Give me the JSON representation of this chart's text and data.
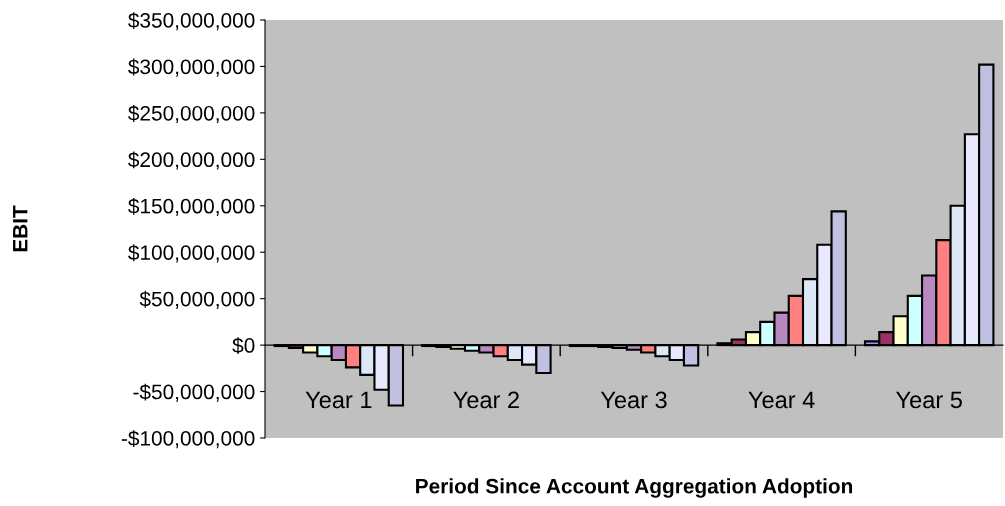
{
  "chart_data": {
    "type": "bar",
    "xlabel": "Period Since Account Aggregation Adoption",
    "ylabel": "EBIT",
    "categories": [
      "Year 1",
      "Year 2",
      "Year 3",
      "Year 4",
      "Year 5"
    ],
    "series": [
      {
        "color": "#9999ff",
        "values": [
          -1000000,
          -1000000,
          -1000000,
          2000000,
          4000000
        ]
      },
      {
        "color": "#993366",
        "values": [
          -3000000,
          -2000000,
          -1000000,
          6000000,
          14000000
        ]
      },
      {
        "color": "#ffffcc",
        "values": [
          -8000000,
          -4000000,
          -2000000,
          14000000,
          31000000
        ]
      },
      {
        "color": "#ccffff",
        "values": [
          -12000000,
          -6000000,
          -3000000,
          25000000,
          53000000
        ]
      },
      {
        "color": "#b888c0",
        "values": [
          -16000000,
          -8000000,
          -5000000,
          35000000,
          75000000
        ]
      },
      {
        "color": "#ff8080",
        "values": [
          -24000000,
          -12000000,
          -8000000,
          53000000,
          113000000
        ]
      },
      {
        "color": "#dce8f6",
        "values": [
          -32000000,
          -16000000,
          -12000000,
          71000000,
          150000000
        ]
      },
      {
        "color": "#e8e8ff",
        "values": [
          -48000000,
          -21000000,
          -16000000,
          108000000,
          227000000
        ]
      },
      {
        "color": "#c0c0e0",
        "values": [
          -65000000,
          -30000000,
          -22000000,
          144000000,
          302000000
        ]
      }
    ],
    "ylim": [
      -100000000,
      350000000
    ],
    "yticks": [
      {
        "value": -100000000,
        "label": "-$100,000,000"
      },
      {
        "value": -50000000,
        "label": "-$50,000,000"
      },
      {
        "value": 0,
        "label": "$0"
      },
      {
        "value": 50000000,
        "label": "$50,000,000"
      },
      {
        "value": 100000000,
        "label": "$100,000,000"
      },
      {
        "value": 150000000,
        "label": "$150,000,000"
      },
      {
        "value": 200000000,
        "label": "$200,000,000"
      },
      {
        "value": 250000000,
        "label": "$250,000,000"
      },
      {
        "value": 300000000,
        "label": "$300,000,000"
      },
      {
        "value": 350000000,
        "label": "$350,000,000"
      }
    ]
  }
}
